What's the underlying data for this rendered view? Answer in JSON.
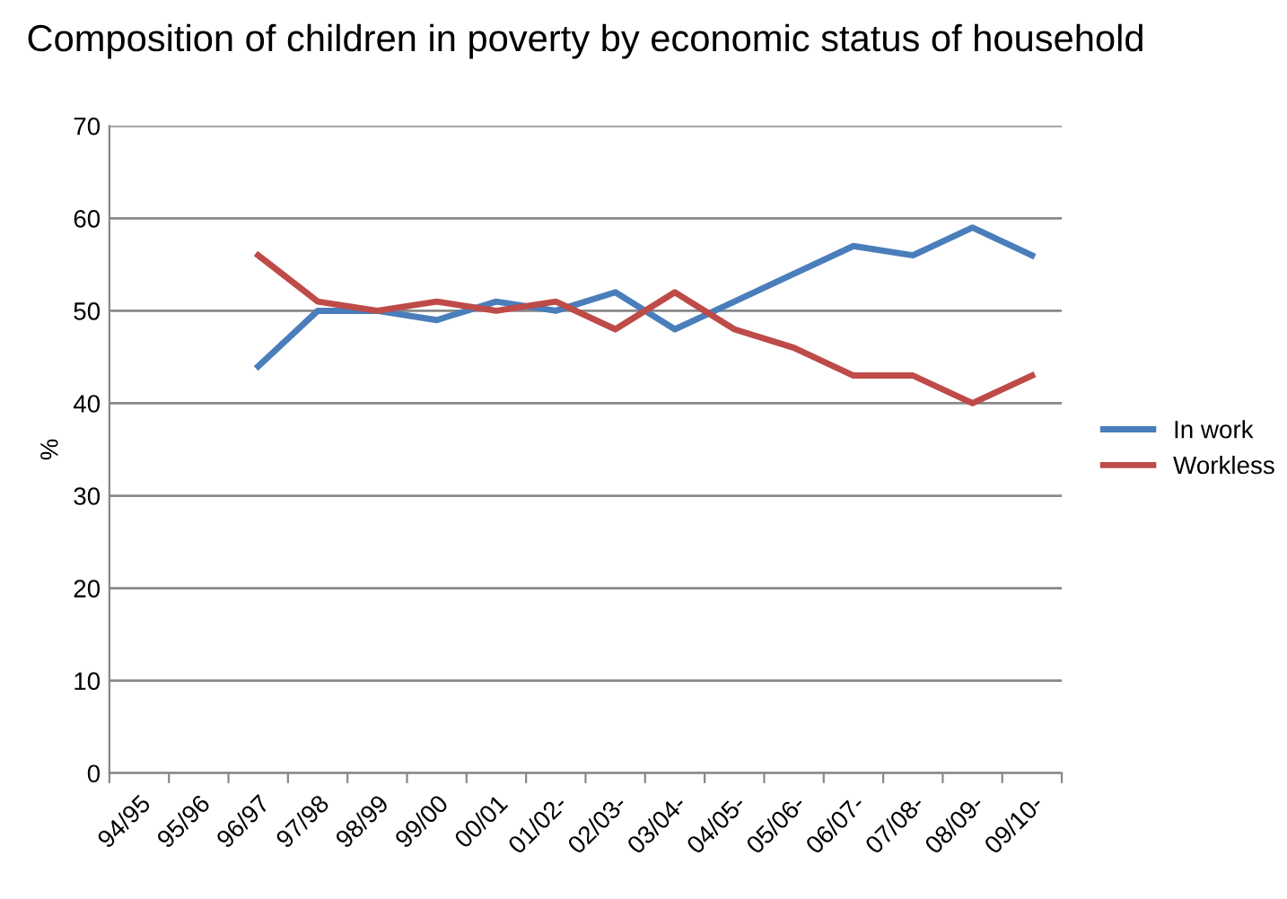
{
  "chart_data": {
    "type": "line",
    "title": "Composition of children in poverty by economic status of household",
    "ylabel": "%",
    "categories": [
      "94/95",
      "95/96",
      "96/97",
      "97/98",
      "98/99",
      "99/00",
      "00/01",
      "01/02-",
      "02/03-",
      "03/04-",
      "04/05-",
      "05/06-",
      "06/07-",
      "07/08-",
      "08/09-",
      "09/10-"
    ],
    "series": [
      {
        "name": "In work",
        "color": "#4a7ebb",
        "values": [
          null,
          null,
          44,
          50,
          50,
          49,
          51,
          50,
          52,
          48,
          51,
          54,
          57,
          56,
          59,
          56
        ]
      },
      {
        "name": "Workless",
        "color": "#be4b48",
        "values": [
          null,
          null,
          56,
          51,
          50,
          51,
          50,
          51,
          48,
          52,
          48,
          46,
          43,
          43,
          40,
          43
        ]
      }
    ],
    "ylim": [
      0,
      70
    ],
    "yticks": [
      0,
      10,
      20,
      30,
      40,
      50,
      60,
      70
    ],
    "grid": "y",
    "legend": "right",
    "marker": "none",
    "line_style": "solid"
  }
}
